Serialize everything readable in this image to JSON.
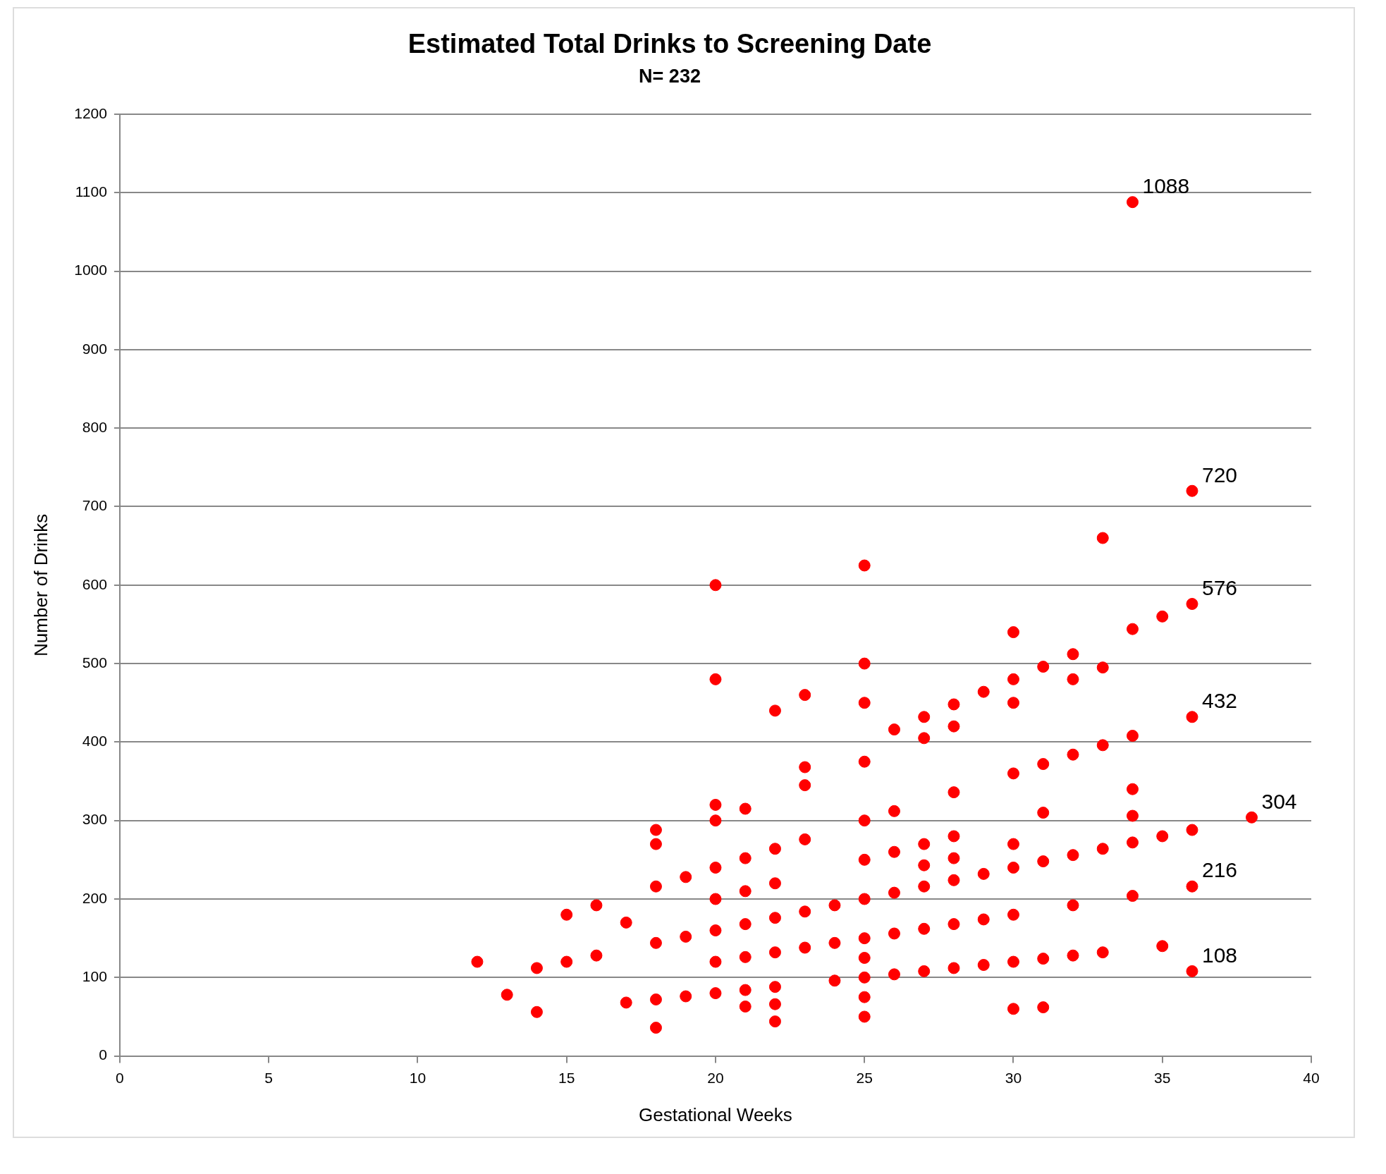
{
  "chart_data": {
    "type": "scatter",
    "title": "Estimated Total Drinks to Screening Date",
    "subtitle": "N= 232",
    "xlabel": "Gestational Weeks",
    "ylabel": "Number of Drinks",
    "x": [
      12,
      13,
      14,
      14,
      15,
      15,
      16,
      16,
      17,
      17,
      18,
      18,
      18,
      18,
      18,
      18,
      19,
      19,
      19,
      20,
      20,
      20,
      20,
      20,
      20,
      20,
      20,
      20,
      21,
      21,
      21,
      21,
      21,
      21,
      21,
      22,
      22,
      22,
      22,
      22,
      22,
      22,
      22,
      23,
      23,
      23,
      23,
      23,
      23,
      24,
      24,
      24,
      25,
      25,
      25,
      25,
      25,
      25,
      25,
      25,
      25,
      25,
      25,
      25,
      26,
      26,
      26,
      26,
      26,
      26,
      27,
      27,
      27,
      27,
      27,
      27,
      27,
      28,
      28,
      28,
      28,
      28,
      28,
      28,
      28,
      29,
      29,
      29,
      29,
      30,
      30,
      30,
      30,
      30,
      30,
      30,
      30,
      30,
      31,
      31,
      31,
      31,
      31,
      31,
      32,
      32,
      32,
      32,
      32,
      32,
      33,
      33,
      33,
      33,
      33,
      34,
      34,
      34,
      34,
      34,
      34,
      34,
      35,
      35,
      35,
      36,
      36,
      36,
      36,
      36,
      36,
      38
    ],
    "series": [
      {
        "color": "#ff0000",
        "values": [
          120,
          78,
          112,
          56,
          180,
          120,
          192,
          128,
          170,
          68,
          288,
          270,
          216,
          144,
          72,
          36,
          228,
          152,
          76,
          600,
          480,
          320,
          300,
          240,
          200,
          160,
          120,
          80,
          315,
          252,
          210,
          168,
          126,
          84,
          63,
          440,
          264,
          220,
          176,
          132,
          88,
          66,
          44,
          460,
          368,
          345,
          276,
          184,
          138,
          192,
          144,
          96,
          625,
          500,
          450,
          375,
          300,
          250,
          200,
          150,
          125,
          100,
          75,
          50,
          416,
          312,
          260,
          208,
          156,
          104,
          432,
          405,
          270,
          243,
          216,
          162,
          108,
          448,
          420,
          336,
          280,
          252,
          224,
          168,
          112,
          464,
          232,
          174,
          116,
          540,
          480,
          450,
          360,
          270,
          240,
          180,
          120,
          60,
          496,
          372,
          310,
          248,
          124,
          62,
          512,
          480,
          384,
          256,
          192,
          128,
          660,
          495,
          396,
          264,
          132,
          1088,
          544,
          408,
          340,
          306,
          272,
          204,
          560,
          280,
          140,
          720,
          576,
          432,
          288,
          216,
          108,
          304
        ]
      }
    ],
    "annotations": [
      {
        "text": "1088",
        "x": 34,
        "y": 1088
      },
      {
        "text": "720",
        "x": 36,
        "y": 720
      },
      {
        "text": "576",
        "x": 36,
        "y": 576
      },
      {
        "text": "432",
        "x": 36,
        "y": 432
      },
      {
        "text": "304",
        "x": 38,
        "y": 304
      },
      {
        "text": "216",
        "x": 36,
        "y": 216
      },
      {
        "text": "108",
        "x": 36,
        "y": 108
      }
    ],
    "xlim": [
      0,
      40
    ],
    "xticks": [
      0,
      5,
      10,
      15,
      20,
      25,
      30,
      35,
      40
    ],
    "ylim": [
      0,
      1200
    ],
    "yticks": [
      0,
      100,
      200,
      300,
      400,
      500,
      600,
      700,
      800,
      900,
      1000,
      1100,
      1200
    ],
    "grid": "y",
    "legend": false,
    "marker": "circle"
  }
}
